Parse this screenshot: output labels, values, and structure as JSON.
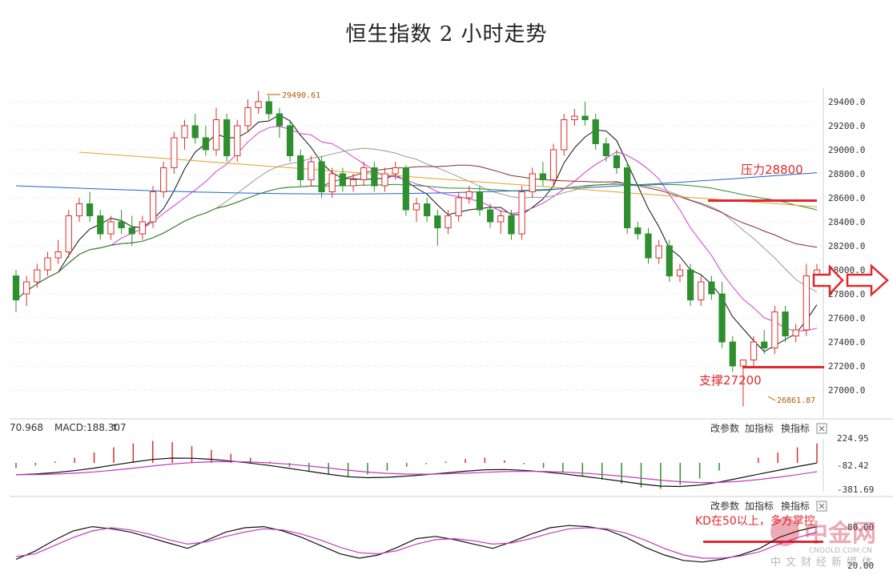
{
  "title": "恒生指数 2 小时走势",
  "chart_data": [
    {
      "type": "candlestick",
      "panel": "main",
      "y_axis": {
        "ticks": [
          "29400.0",
          "29200.0",
          "29000.0",
          "28800.0",
          "28600.0",
          "28400.0",
          "28200.0",
          "28000.0",
          "27800.0",
          "27600.0",
          "27400.0",
          "27200.0",
          "27000.0"
        ],
        "ylim": [
          26820,
          29560
        ]
      },
      "annotations": {
        "high_label": "29490.61",
        "low_label": "26861.87",
        "resistance_label": "压力28800",
        "support_label": "支撑27200"
      },
      "candles": [
        {
          "o": 27950,
          "h": 28000,
          "l": 27650,
          "c": 27750
        },
        {
          "o": 27800,
          "h": 27950,
          "l": 27700,
          "c": 27900
        },
        {
          "o": 27900,
          "h": 28050,
          "l": 27850,
          "c": 28000
        },
        {
          "o": 28000,
          "h": 28150,
          "l": 27950,
          "c": 28100
        },
        {
          "o": 28100,
          "h": 28250,
          "l": 28050,
          "c": 28150
        },
        {
          "o": 28150,
          "h": 28500,
          "l": 28100,
          "c": 28450
        },
        {
          "o": 28450,
          "h": 28600,
          "l": 28400,
          "c": 28550
        },
        {
          "o": 28550,
          "h": 28650,
          "l": 28400,
          "c": 28450
        },
        {
          "o": 28450,
          "h": 28500,
          "l": 28250,
          "c": 28300
        },
        {
          "o": 28300,
          "h": 28450,
          "l": 28250,
          "c": 28400
        },
        {
          "o": 28400,
          "h": 28500,
          "l": 28300,
          "c": 28350
        },
        {
          "o": 28350,
          "h": 28450,
          "l": 28200,
          "c": 28300
        },
        {
          "o": 28300,
          "h": 28450,
          "l": 28250,
          "c": 28400
        },
        {
          "o": 28400,
          "h": 28700,
          "l": 28350,
          "c": 28650
        },
        {
          "o": 28650,
          "h": 28900,
          "l": 28600,
          "c": 28850
        },
        {
          "o": 28850,
          "h": 29150,
          "l": 28800,
          "c": 29100
        },
        {
          "o": 29100,
          "h": 29250,
          "l": 29000,
          "c": 29200
        },
        {
          "o": 29200,
          "h": 29300,
          "l": 29050,
          "c": 29100
        },
        {
          "o": 29100,
          "h": 29200,
          "l": 28950,
          "c": 29000
        },
        {
          "o": 29000,
          "h": 29350,
          "l": 28950,
          "c": 29250
        },
        {
          "o": 29250,
          "h": 29300,
          "l": 28900,
          "c": 28950
        },
        {
          "o": 28950,
          "h": 29250,
          "l": 28900,
          "c": 29200
        },
        {
          "o": 29200,
          "h": 29420,
          "l": 29150,
          "c": 29350
        },
        {
          "o": 29350,
          "h": 29490,
          "l": 29300,
          "c": 29400
        },
        {
          "o": 29400,
          "h": 29450,
          "l": 29250,
          "c": 29300
        },
        {
          "o": 29300,
          "h": 29350,
          "l": 29100,
          "c": 29200
        },
        {
          "o": 29200,
          "h": 29250,
          "l": 28900,
          "c": 28950
        },
        {
          "o": 28950,
          "h": 29000,
          "l": 28700,
          "c": 28750
        },
        {
          "o": 28750,
          "h": 28950,
          "l": 28700,
          "c": 28900
        },
        {
          "o": 28900,
          "h": 28950,
          "l": 28600,
          "c": 28650
        },
        {
          "o": 28650,
          "h": 28850,
          "l": 28600,
          "c": 28800
        },
        {
          "o": 28800,
          "h": 28850,
          "l": 28650,
          "c": 28700
        },
        {
          "o": 28700,
          "h": 28800,
          "l": 28650,
          "c": 28750
        },
        {
          "o": 28750,
          "h": 28900,
          "l": 28700,
          "c": 28850
        },
        {
          "o": 28850,
          "h": 28900,
          "l": 28650,
          "c": 28700
        },
        {
          "o": 28700,
          "h": 28850,
          "l": 28650,
          "c": 28800
        },
        {
          "o": 28800,
          "h": 28900,
          "l": 28750,
          "c": 28850
        },
        {
          "o": 28850,
          "h": 28870,
          "l": 28450,
          "c": 28500
        },
        {
          "o": 28500,
          "h": 28600,
          "l": 28400,
          "c": 28550
        },
        {
          "o": 28550,
          "h": 28600,
          "l": 28400,
          "c": 28450
        },
        {
          "o": 28450,
          "h": 28500,
          "l": 28200,
          "c": 28350
        },
        {
          "o": 28350,
          "h": 28500,
          "l": 28300,
          "c": 28450
        },
        {
          "o": 28450,
          "h": 28650,
          "l": 28400,
          "c": 28600
        },
        {
          "o": 28600,
          "h": 28700,
          "l": 28550,
          "c": 28650
        },
        {
          "o": 28650,
          "h": 28700,
          "l": 28450,
          "c": 28500
        },
        {
          "o": 28500,
          "h": 28550,
          "l": 28350,
          "c": 28400
        },
        {
          "o": 28400,
          "h": 28500,
          "l": 28300,
          "c": 28450
        },
        {
          "o": 28450,
          "h": 28500,
          "l": 28250,
          "c": 28300
        },
        {
          "o": 28300,
          "h": 28700,
          "l": 28250,
          "c": 28650
        },
        {
          "o": 28650,
          "h": 28850,
          "l": 28600,
          "c": 28800
        },
        {
          "o": 28800,
          "h": 28900,
          "l": 28700,
          "c": 28750
        },
        {
          "o": 28750,
          "h": 29050,
          "l": 28700,
          "c": 29000
        },
        {
          "o": 29000,
          "h": 29300,
          "l": 28950,
          "c": 29250
        },
        {
          "o": 29250,
          "h": 29340,
          "l": 29200,
          "c": 29280
        },
        {
          "o": 29280,
          "h": 29400,
          "l": 29200,
          "c": 29250
        },
        {
          "o": 29250,
          "h": 29300,
          "l": 29000,
          "c": 29050
        },
        {
          "o": 29050,
          "h": 29100,
          "l": 28900,
          "c": 28950
        },
        {
          "o": 28950,
          "h": 29000,
          "l": 28800,
          "c": 28850
        },
        {
          "o": 28850,
          "h": 28900,
          "l": 28300,
          "c": 28350
        },
        {
          "o": 28350,
          "h": 28400,
          "l": 28250,
          "c": 28300
        },
        {
          "o": 28300,
          "h": 28350,
          "l": 28050,
          "c": 28100
        },
        {
          "o": 28100,
          "h": 28250,
          "l": 28050,
          "c": 28200
        },
        {
          "o": 28200,
          "h": 28250,
          "l": 27900,
          "c": 27950
        },
        {
          "o": 27950,
          "h": 28050,
          "l": 27900,
          "c": 28000
        },
        {
          "o": 28000,
          "h": 28050,
          "l": 27700,
          "c": 27750
        },
        {
          "o": 27750,
          "h": 27950,
          "l": 27700,
          "c": 27900
        },
        {
          "o": 27900,
          "h": 27950,
          "l": 27750,
          "c": 27800
        },
        {
          "o": 27800,
          "h": 27900,
          "l": 27350,
          "c": 27400
        },
        {
          "o": 27400,
          "h": 27450,
          "l": 27150,
          "c": 27200
        },
        {
          "o": 27200,
          "h": 27250,
          "l": 26862,
          "c": 27250
        },
        {
          "o": 27250,
          "h": 27450,
          "l": 27200,
          "c": 27400
        },
        {
          "o": 27400,
          "h": 27500,
          "l": 27300,
          "c": 27350
        },
        {
          "o": 27350,
          "h": 27700,
          "l": 27300,
          "c": 27650
        },
        {
          "o": 27650,
          "h": 27700,
          "l": 27400,
          "c": 27450
        },
        {
          "o": 27450,
          "h": 27550,
          "l": 27400,
          "c": 27500
        },
        {
          "o": 27500,
          "h": 28050,
          "l": 27450,
          "c": 27950
        },
        {
          "o": 27950,
          "h": 28050,
          "l": 27900,
          "c": 28000
        }
      ]
    },
    {
      "type": "bar",
      "panel": "macd",
      "legend": {
        "value_label": "70.968",
        "macd_label": "MACD:188.307"
      },
      "y_axis": {
        "ticks": [
          "224.95",
          "-82.42",
          "-381.69"
        ],
        "ylim": [
          -381.69,
          224.95
        ]
      },
      "controls": [
        "改参数",
        "加指标",
        "换指标"
      ],
      "values": [
        -40,
        -20,
        10,
        40,
        80,
        120,
        150,
        170,
        160,
        130,
        100,
        70,
        40,
        10,
        -30,
        -60,
        -90,
        -110,
        -90,
        -60,
        -30,
        -10,
        10,
        30,
        40,
        20,
        -10,
        -40,
        -70,
        -100,
        -130,
        -160,
        -190,
        -200,
        -170,
        -120,
        -60,
        0,
        40,
        80,
        120,
        150
      ]
    },
    {
      "type": "line",
      "panel": "kd",
      "y_axis": {
        "ticks": [
          "80.00",
          "20.00"
        ],
        "ylim": [
          0,
          100
        ]
      },
      "controls": [
        "改参数",
        "加指标",
        "换指标"
      ],
      "annotation": "KD在50以上，多方掌控",
      "series": [
        {
          "values": [
            20,
            35,
            55,
            72,
            80,
            76,
            70,
            60,
            50,
            40,
            55,
            70,
            78,
            80,
            72,
            60,
            45,
            30,
            22,
            28,
            42,
            58,
            62,
            56,
            48,
            40,
            52,
            66,
            78,
            82,
            80,
            74,
            60,
            42,
            28,
            18,
            15,
            20,
            28,
            40,
            60,
            72,
            80
          ]
        },
        {
          "values": [
            25,
            30,
            45,
            60,
            72,
            78,
            74,
            66,
            56,
            48,
            52,
            62,
            70,
            76,
            74,
            66,
            55,
            42,
            32,
            30,
            36,
            48,
            56,
            58,
            54,
            48,
            50,
            58,
            68,
            76,
            78,
            76,
            68,
            55,
            40,
            28,
            22,
            22,
            26,
            34,
            48,
            60,
            70
          ]
        }
      ]
    }
  ],
  "watermark": {
    "brand": "中金网",
    "site": "CNGOLD.COM.CN",
    "tagline": "中文财经新媒体"
  },
  "colors": {
    "up": "#d9302c",
    "down": "#2f8f2f",
    "ma5": "#111111",
    "ma10": "#d23bd2",
    "ma20": "#9a9a9a",
    "ma30": "#8b2a2a",
    "ma60": "#2c8c2c",
    "ma120": "#1d66c8",
    "ma250": "#e0a020",
    "macd_dif": "#111111",
    "macd_dea": "#c03cc0",
    "level": "#e0282e"
  }
}
